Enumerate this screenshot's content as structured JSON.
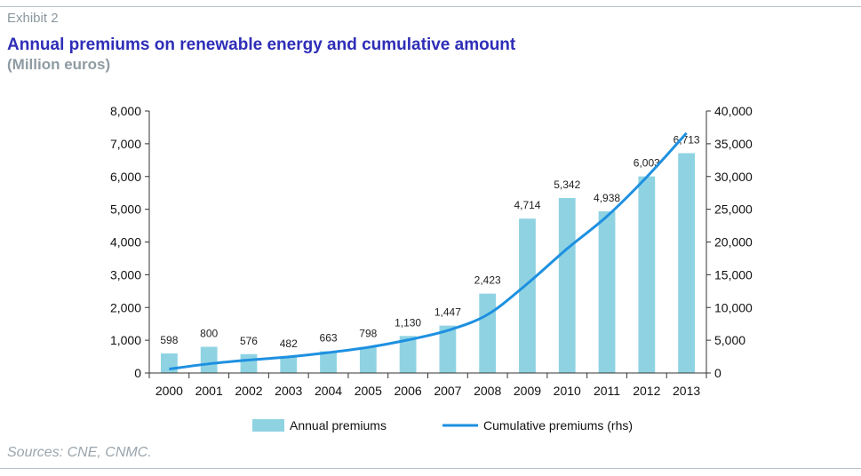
{
  "header": {
    "exhibit": "Exhibit 2",
    "title": "Annual premiums on renewable energy and cumulative amount",
    "subtitle": "(Million euros)"
  },
  "footer": {
    "source": "Sources: CNE, CNMC."
  },
  "colors": {
    "bar": "#8fd3e3",
    "line": "#1e90e0",
    "title": "#2e2eb8"
  },
  "chart_data": {
    "type": "bar",
    "categories": [
      "2000",
      "2001",
      "2002",
      "2003",
      "2004",
      "2005",
      "2006",
      "2007",
      "2008",
      "2009",
      "2010",
      "2011",
      "2012",
      "2013"
    ],
    "series": [
      {
        "name": "Annual premiums",
        "type": "bar",
        "axis": "left",
        "values": [
          598,
          800,
          576,
          482,
          663,
          798,
          1130,
          1447,
          2423,
          4714,
          5342,
          4938,
          6003,
          6713
        ],
        "labels": [
          "598",
          "800",
          "576",
          "482",
          "663",
          "798",
          "1,130",
          "1,447",
          "2,423",
          "4,714",
          "5,342",
          "4,938",
          "6,003",
          "6,713"
        ]
      },
      {
        "name": "Cumulative premiums (rhs)",
        "type": "line",
        "axis": "right",
        "values": [
          598,
          1398,
          1974,
          2456,
          3119,
          3917,
          5047,
          6494,
          8917,
          13631,
          18973,
          23911,
          29914,
          36627
        ]
      }
    ],
    "y_left": {
      "min": 0,
      "max": 8000,
      "ticks": [
        "0",
        "1,000",
        "2,000",
        "3,000",
        "4,000",
        "5,000",
        "6,000",
        "7,000",
        "8,000"
      ]
    },
    "y_right": {
      "min": 0,
      "max": 40000,
      "ticks": [
        "0",
        "5,000",
        "10,000",
        "15,000",
        "20,000",
        "25,000",
        "30,000",
        "35,000",
        "40,000"
      ]
    },
    "grid": false,
    "legend": "bottom"
  }
}
